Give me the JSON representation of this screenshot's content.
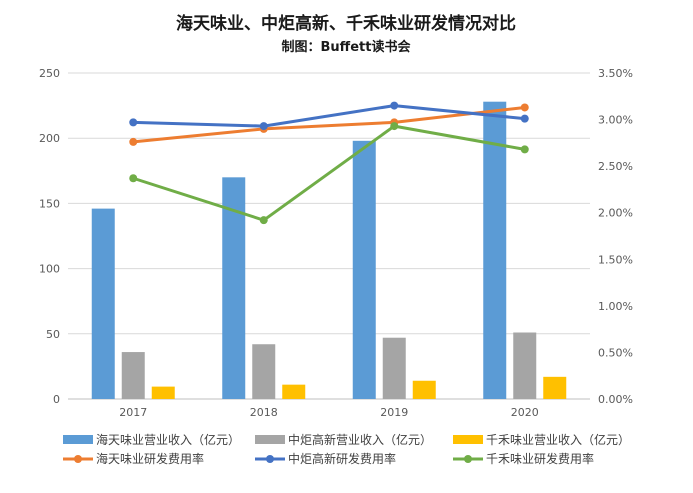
{
  "chart_data": {
    "type": "bar",
    "title": "海天味业、中炬高新、千禾味业研发情况对比",
    "subtitle": "制图：Buffett读书会",
    "categories": [
      "2017",
      "2018",
      "2019",
      "2020"
    ],
    "y_left": {
      "min": 0,
      "max": 250,
      "ticks": [
        "0",
        "50",
        "100",
        "150",
        "200",
        "250"
      ]
    },
    "y_right": {
      "min": 0,
      "max": 0.035,
      "ticks": [
        "0.00%",
        "0.50%",
        "1.00%",
        "1.50%",
        "2.00%",
        "2.50%",
        "3.00%",
        "3.50%"
      ]
    },
    "grid": true,
    "legend_position": "bottom",
    "bar_series": [
      {
        "name": "海天味业营业收入（亿元）",
        "color": "#5B9BD5",
        "values": [
          146,
          170,
          198,
          228
        ]
      },
      {
        "name": "中炬高新营业收入（亿元）",
        "color": "#A5A5A5",
        "values": [
          36,
          42,
          47,
          51
        ]
      },
      {
        "name": "千禾味业营业收入（亿元）",
        "color": "#FFC000",
        "values": [
          9.5,
          11,
          14,
          17
        ]
      }
    ],
    "line_series": [
      {
        "name": "海天味业研发费用率",
        "color": "#ED7D31",
        "values": [
          0.0276,
          0.029,
          0.0297,
          0.0313
        ]
      },
      {
        "name": "中炬高新研发费用率",
        "color": "#4472C4",
        "values": [
          0.0297,
          0.0293,
          0.0315,
          0.0301
        ]
      },
      {
        "name": "千禾味业研发费用率",
        "color": "#70AD47",
        "values": [
          0.0237,
          0.0192,
          0.0293,
          0.0268
        ]
      }
    ]
  }
}
